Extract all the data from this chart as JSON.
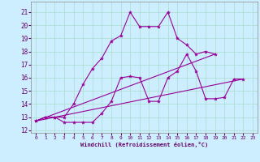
{
  "xlabel": "Windchill (Refroidissement éolien,°C)",
  "bg_color": "#cceeff",
  "line_color": "#990099",
  "grid_color": "#aaddcc",
  "xlim": [
    -0.5,
    23.5
  ],
  "ylim": [
    11.8,
    21.8
  ],
  "yticks": [
    12,
    13,
    14,
    15,
    16,
    17,
    18,
    19,
    20,
    21
  ],
  "xticks": [
    0,
    1,
    2,
    3,
    4,
    5,
    6,
    7,
    8,
    9,
    10,
    11,
    12,
    13,
    14,
    15,
    16,
    17,
    18,
    19,
    20,
    21,
    22,
    23
  ],
  "series1_x": [
    0,
    1,
    2,
    3,
    4,
    5,
    6,
    7,
    8,
    9,
    10,
    11,
    12,
    13,
    14,
    15,
    16,
    17,
    18,
    19,
    20,
    21,
    22
  ],
  "series1_y": [
    12.7,
    13.0,
    13.0,
    12.6,
    12.6,
    12.6,
    12.6,
    13.3,
    14.2,
    16.0,
    16.1,
    16.0,
    14.2,
    14.2,
    16.0,
    16.5,
    17.8,
    16.5,
    14.4,
    14.4,
    14.5,
    15.9,
    15.9
  ],
  "series2_x": [
    0,
    1,
    2,
    3,
    4,
    5,
    6,
    7,
    8,
    9,
    10,
    11,
    12,
    13,
    14,
    15,
    16,
    17,
    18,
    19
  ],
  "series2_y": [
    12.7,
    13.0,
    13.0,
    13.0,
    14.0,
    15.5,
    16.7,
    17.5,
    18.8,
    19.2,
    21.0,
    19.9,
    19.9,
    19.9,
    21.0,
    19.0,
    18.5,
    17.8,
    18.0,
    17.8
  ],
  "series3_x": [
    0,
    22
  ],
  "series3_y": [
    12.7,
    15.9
  ],
  "series4_x": [
    0,
    19
  ],
  "series4_y": [
    12.7,
    17.8
  ]
}
